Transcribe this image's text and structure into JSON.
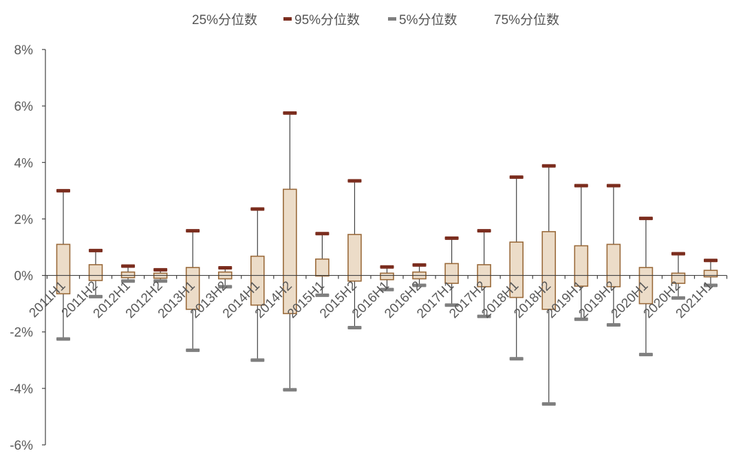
{
  "legend": {
    "items": [
      {
        "label": "25%分位数",
        "marker_color": "",
        "key": "p25"
      },
      {
        "label": "95%分位数",
        "marker_color": "#7b2d1e",
        "key": "p95"
      },
      {
        "label": "5%分位数",
        "marker_color": "#7f7f7f",
        "key": "p5"
      },
      {
        "label": "75%分位数",
        "marker_color": "",
        "key": "p75"
      }
    ]
  },
  "colors": {
    "box_fill": "#ecdcc8",
    "box_stroke": "#9a6a3a",
    "whisker": "#404040",
    "p95_marker": "#7b2d1e",
    "p5_marker": "#7f7f7f",
    "axis": "#404040",
    "tick_text": "#595959"
  },
  "chart_data": {
    "type": "box",
    "title": "",
    "xlabel": "",
    "ylabel": "",
    "ylim": [
      -6,
      8
    ],
    "y_ticks": [
      -6,
      -4,
      -2,
      0,
      2,
      4,
      6,
      8
    ],
    "y_tick_labels": [
      "-6%",
      "-4%",
      "-2%",
      "0%",
      "2%",
      "4%",
      "6%",
      "8%"
    ],
    "y_unit": "%",
    "grid": false,
    "legend_position": "top",
    "categories": [
      "2011H1",
      "2011H2",
      "2012H1",
      "2012H2",
      "2013H1",
      "2013H2",
      "2014H1",
      "2014H2",
      "2015H1",
      "2015H2",
      "2016H1",
      "2016H2",
      "2017H1",
      "2017H2",
      "2018H1",
      "2018H2",
      "2019H1",
      "2019H2",
      "2020H1",
      "2020H2",
      "2021H1"
    ],
    "series": [
      {
        "name": "5%分位数",
        "values": [
          -2.25,
          -0.75,
          -0.2,
          -0.2,
          -2.65,
          -0.4,
          -3.0,
          -4.05,
          -0.7,
          -1.85,
          -0.5,
          -0.35,
          -1.05,
          -1.45,
          -2.95,
          -4.55,
          -1.55,
          -1.75,
          -2.8,
          -0.8,
          -0.35
        ]
      },
      {
        "name": "25%分位数",
        "values": [
          -0.65,
          -0.18,
          -0.08,
          -0.1,
          -1.2,
          -0.12,
          -1.05,
          -1.35,
          -0.02,
          -0.2,
          -0.15,
          -0.12,
          -0.28,
          -0.4,
          -0.78,
          -1.2,
          -0.38,
          -0.4,
          -1.0,
          -0.28,
          -0.05
        ]
      },
      {
        "name": "75%分位数",
        "values": [
          1.1,
          0.38,
          0.12,
          0.08,
          0.28,
          0.12,
          0.68,
          3.05,
          0.58,
          1.45,
          0.08,
          0.12,
          0.42,
          0.38,
          1.18,
          1.55,
          1.05,
          1.1,
          0.28,
          0.08,
          0.18
        ]
      },
      {
        "name": "95%分位数",
        "values": [
          3.0,
          0.88,
          0.33,
          0.2,
          1.58,
          0.27,
          2.35,
          5.75,
          1.48,
          3.35,
          0.3,
          0.37,
          1.32,
          1.58,
          3.48,
          3.88,
          3.18,
          3.18,
          2.02,
          0.77,
          0.53
        ]
      }
    ]
  }
}
